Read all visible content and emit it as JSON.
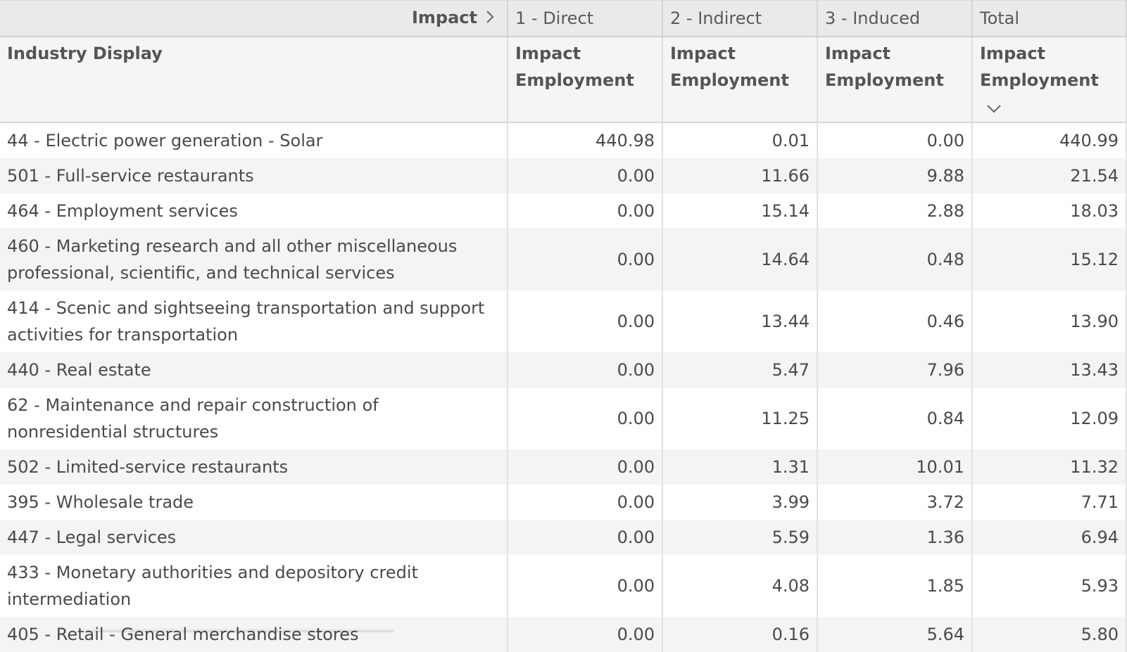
{
  "header": {
    "pivot_label": "Impact",
    "groups": [
      "1 - Direct",
      "2 - Indirect",
      "3 - Induced",
      "Total"
    ],
    "row_dimension": "Industry Display",
    "measure_label": "Impact Employment"
  },
  "rows": [
    {
      "industry": "44 - Electric power generation - Solar",
      "direct": "440.98",
      "indirect": "0.01",
      "induced": "0.00",
      "total": "440.99"
    },
    {
      "industry": "501 - Full-service restaurants",
      "direct": "0.00",
      "indirect": "11.66",
      "induced": "9.88",
      "total": "21.54"
    },
    {
      "industry": "464 - Employment services",
      "direct": "0.00",
      "indirect": "15.14",
      "induced": "2.88",
      "total": "18.03"
    },
    {
      "industry": "460 - Marketing research and all other miscellaneous professional, scientific, and technical services",
      "direct": "0.00",
      "indirect": "14.64",
      "induced": "0.48",
      "total": "15.12"
    },
    {
      "industry": "414 - Scenic and sightseeing transportation and support activities for transportation",
      "direct": "0.00",
      "indirect": "13.44",
      "induced": "0.46",
      "total": "13.90"
    },
    {
      "industry": "440 - Real estate",
      "direct": "0.00",
      "indirect": "5.47",
      "induced": "7.96",
      "total": "13.43"
    },
    {
      "industry": "62 - Maintenance and repair construction of nonresidential structures",
      "direct": "0.00",
      "indirect": "11.25",
      "induced": "0.84",
      "total": "12.09"
    },
    {
      "industry": "502 - Limited-service restaurants",
      "direct": "0.00",
      "indirect": "1.31",
      "induced": "10.01",
      "total": "11.32"
    },
    {
      "industry": "395 - Wholesale trade",
      "direct": "0.00",
      "indirect": "3.99",
      "induced": "3.72",
      "total": "7.71"
    },
    {
      "industry": "447 - Legal services",
      "direct": "0.00",
      "indirect": "5.59",
      "induced": "1.36",
      "total": "6.94"
    },
    {
      "industry": "433 - Monetary authorities and depository credit intermediation",
      "direct": "0.00",
      "indirect": "4.08",
      "induced": "1.85",
      "total": "5.93"
    },
    {
      "industry": "405 - Retail - General merchandise stores",
      "direct": "0.00",
      "indirect": "0.16",
      "induced": "5.64",
      "total": "5.80"
    }
  ],
  "icons": {
    "pivot_expand": "chevron-right-icon",
    "sort": "chevron-down-icon"
  },
  "colors": {
    "header_group_bg": "#eaeaea",
    "header_measure_bg": "#f5f5f5",
    "row_alt_bg": "#f4f4f4",
    "text": "#4a4a4a"
  }
}
